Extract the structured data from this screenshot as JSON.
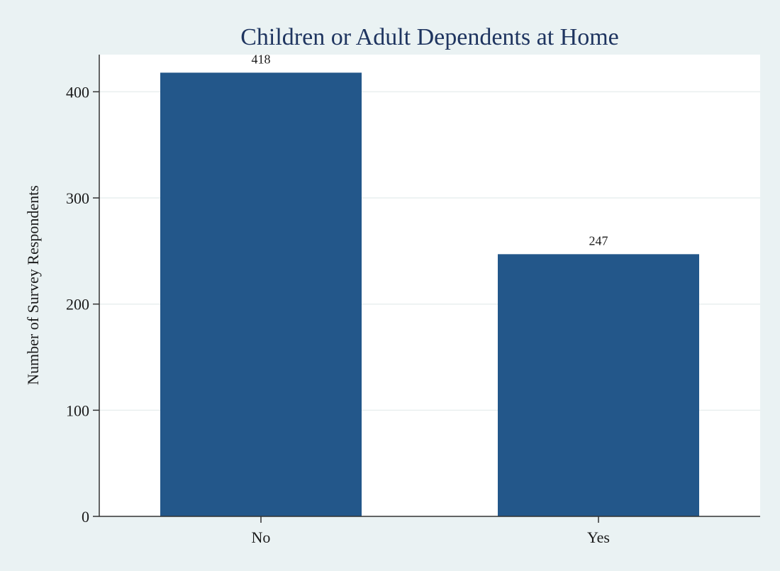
{
  "chart_data": {
    "type": "bar",
    "title": "Children or Adult Dependents at Home",
    "xlabel": "",
    "ylabel": "Number of Survey Respondents",
    "categories": [
      "No",
      "Yes"
    ],
    "values": [
      418,
      247
    ],
    "data_labels": [
      "418",
      "247"
    ],
    "ylim": [
      0,
      435
    ],
    "yticks": [
      0,
      100,
      200,
      300,
      400
    ],
    "ytick_labels": [
      "0",
      "100",
      "200",
      "300",
      "400"
    ],
    "grid": true,
    "bar_color": "#23578a",
    "plot_background": "#ffffff",
    "page_background": "#eaf2f3"
  }
}
